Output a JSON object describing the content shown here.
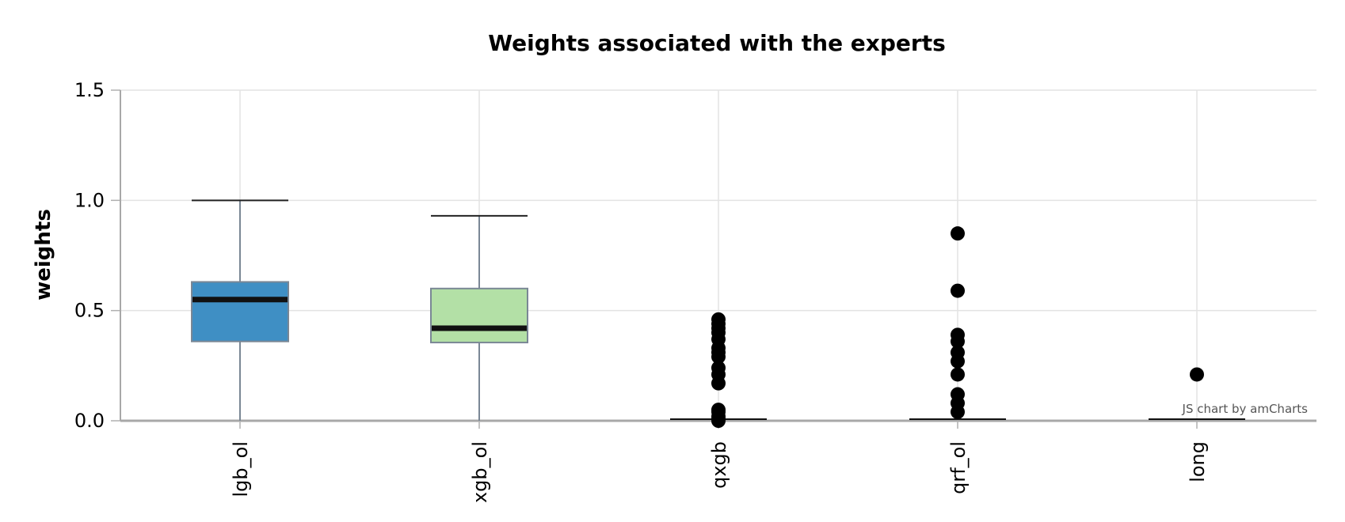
{
  "chart_data": {
    "type": "box",
    "title": "Weights associated with the experts",
    "xlabel": "",
    "ylabel": "weights",
    "ylim": [
      0,
      1.5
    ],
    "yticks": [
      "0.0",
      "0.5",
      "1.0",
      "1.5"
    ],
    "ytick_values": [
      0,
      0.5,
      1.0,
      1.5
    ],
    "grid": true,
    "categories": [
      "lgb_ol",
      "xgb_ol",
      "qxgb",
      "qrf_ol",
      "long"
    ],
    "boxes": [
      {
        "category": "lgb_ol",
        "whisker_low": 0.0,
        "q1": 0.36,
        "median": 0.55,
        "q3": 0.63,
        "whisker_high": 1.0,
        "outliers": [],
        "color": "#3f8fc4"
      },
      {
        "category": "xgb_ol",
        "whisker_low": 0.0,
        "q1": 0.355,
        "median": 0.42,
        "q3": 0.6,
        "whisker_high": 0.93,
        "outliers": [],
        "color": "#b3e0a6"
      },
      {
        "category": "qxgb",
        "whisker_low": 0.0,
        "q1": 0.0,
        "median": 0.0,
        "q3": 0.0,
        "whisker_high": 0.0,
        "outliers": [
          0.46,
          0.44,
          0.42,
          0.4,
          0.37,
          0.33,
          0.31,
          0.29,
          0.24,
          0.21,
          0.17,
          0.05,
          0.04,
          0.02,
          0.01,
          0.0
        ],
        "color": "#3f8fc4"
      },
      {
        "category": "qrf_ol",
        "whisker_low": 0.0,
        "q1": 0.0,
        "median": 0.0,
        "q3": 0.0,
        "whisker_high": 0.0,
        "outliers": [
          0.85,
          0.59,
          0.39,
          0.36,
          0.31,
          0.27,
          0.21,
          0.12,
          0.08,
          0.04
        ],
        "color": "#3f8fc4"
      },
      {
        "category": "long",
        "whisker_low": 0.0,
        "q1": 0.0,
        "median": 0.0,
        "q3": 0.0,
        "whisker_high": 0.0,
        "outliers": [
          0.21
        ],
        "color": "#3f8fc4"
      }
    ],
    "credit": "JS chart by amCharts"
  }
}
